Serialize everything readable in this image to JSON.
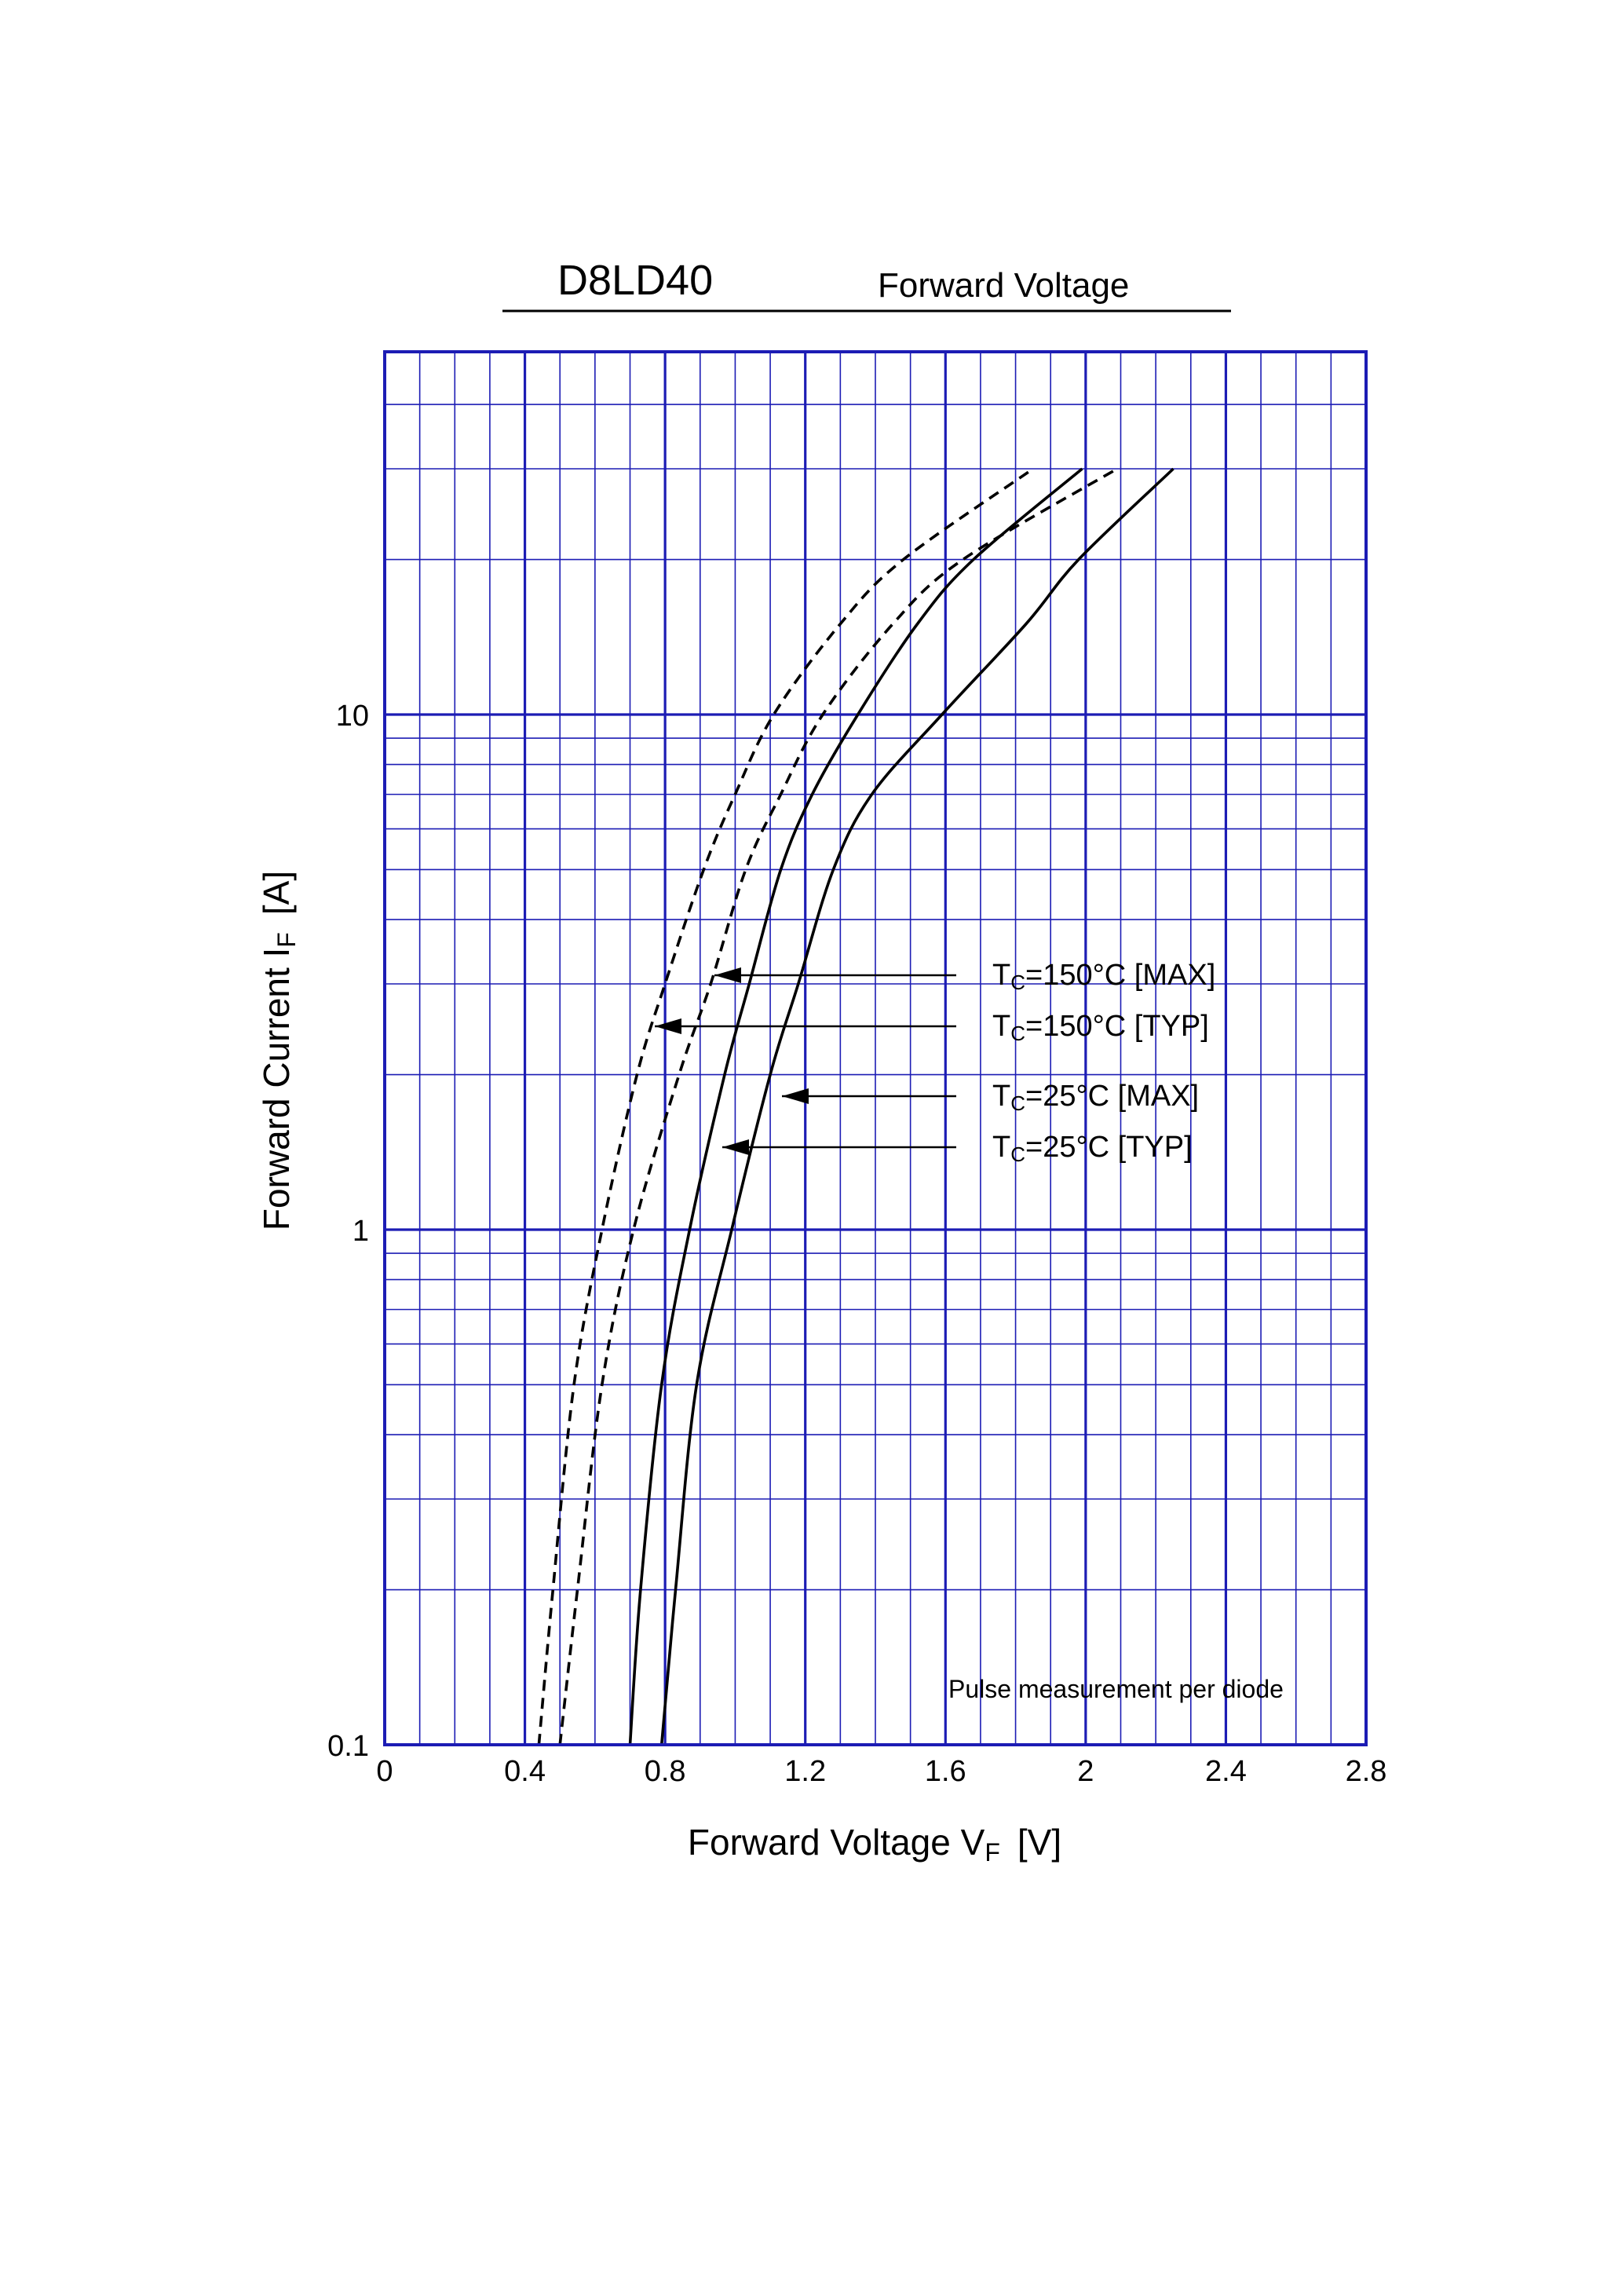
{
  "header": {
    "part_number": "D8LD40",
    "chart_title": "Forward Voltage"
  },
  "note": "Pulse measurement per diode",
  "axes": {
    "x": {
      "label_prefix": "Forward Voltage  V",
      "label_sub": "F",
      "label_unit": "[V]",
      "ticks": [
        "0",
        "0.4",
        "0.8",
        "1.2",
        "1.6",
        "2",
        "2.4",
        "2.8"
      ]
    },
    "y": {
      "label_prefix": "Forward Current  I",
      "label_sub": "F",
      "label_unit": "[A]",
      "ticks": [
        "0.1",
        "1",
        "10"
      ]
    }
  },
  "legend": [
    {
      "pre": "T",
      "sub": "C",
      "post": "=150°C [MAX]"
    },
    {
      "pre": "T",
      "sub": "C",
      "post": "=150°C [TYP]"
    },
    {
      "pre": "T",
      "sub": "C",
      "post": "=25°C [MAX]"
    },
    {
      "pre": "T",
      "sub": "C",
      "post": "=25°C [TYP]"
    }
  ],
  "colors": {
    "grid": "#1c1cb4",
    "curve": "#000000"
  },
  "chart_data": {
    "type": "line",
    "title": "Forward Voltage",
    "xlabel": "Forward Voltage VF [V]",
    "ylabel": "Forward Current IF [A]",
    "xlim": [
      0,
      2.8
    ],
    "ylim": [
      0.1,
      40
    ],
    "yscale": "log",
    "grid": true,
    "series": [
      {
        "name": "Tc=150°C [MAX]",
        "dash": true,
        "points": [
          [
            0.44,
            0.1
          ],
          [
            0.48,
            0.2
          ],
          [
            0.54,
            0.5
          ],
          [
            0.62,
            1.0
          ],
          [
            0.72,
            2.0
          ],
          [
            0.8,
            3.0
          ],
          [
            0.91,
            5.0
          ],
          [
            1.0,
            7.0
          ],
          [
            1.11,
            10.0
          ],
          [
            1.3,
            15.0
          ],
          [
            1.48,
            20.0
          ],
          [
            1.85,
            30.0
          ]
        ]
      },
      {
        "name": "Tc=150°C [TYP]",
        "dash": true,
        "points": [
          [
            0.5,
            0.1
          ],
          [
            0.55,
            0.2
          ],
          [
            0.62,
            0.5
          ],
          [
            0.71,
            1.0
          ],
          [
            0.84,
            2.0
          ],
          [
            0.93,
            3.0
          ],
          [
            1.03,
            5.0
          ],
          [
            1.13,
            7.0
          ],
          [
            1.25,
            10.0
          ],
          [
            1.45,
            15.0
          ],
          [
            1.65,
            20.0
          ],
          [
            2.09,
            30.0
          ]
        ]
      },
      {
        "name": "Tc=25°C [MAX]",
        "dash": false,
        "points": [
          [
            0.7,
            0.1
          ],
          [
            0.73,
            0.2
          ],
          [
            0.79,
            0.5
          ],
          [
            0.87,
            1.0
          ],
          [
            0.97,
            2.0
          ],
          [
            1.04,
            3.0
          ],
          [
            1.13,
            5.0
          ],
          [
            1.22,
            7.0
          ],
          [
            1.35,
            10.0
          ],
          [
            1.52,
            15.0
          ],
          [
            1.68,
            20.0
          ],
          [
            1.99,
            30.0
          ]
        ]
      },
      {
        "name": "Tc=25°C [TYP]",
        "dash": false,
        "points": [
          [
            0.79,
            0.1
          ],
          [
            0.83,
            0.2
          ],
          [
            0.89,
            0.5
          ],
          [
            0.99,
            1.0
          ],
          [
            1.1,
            2.0
          ],
          [
            1.18,
            3.0
          ],
          [
            1.28,
            5.0
          ],
          [
            1.39,
            7.0
          ],
          [
            1.59,
            10.0
          ],
          [
            1.83,
            15.0
          ],
          [
            1.98,
            20.0
          ],
          [
            2.25,
            30.0
          ]
        ]
      }
    ]
  }
}
